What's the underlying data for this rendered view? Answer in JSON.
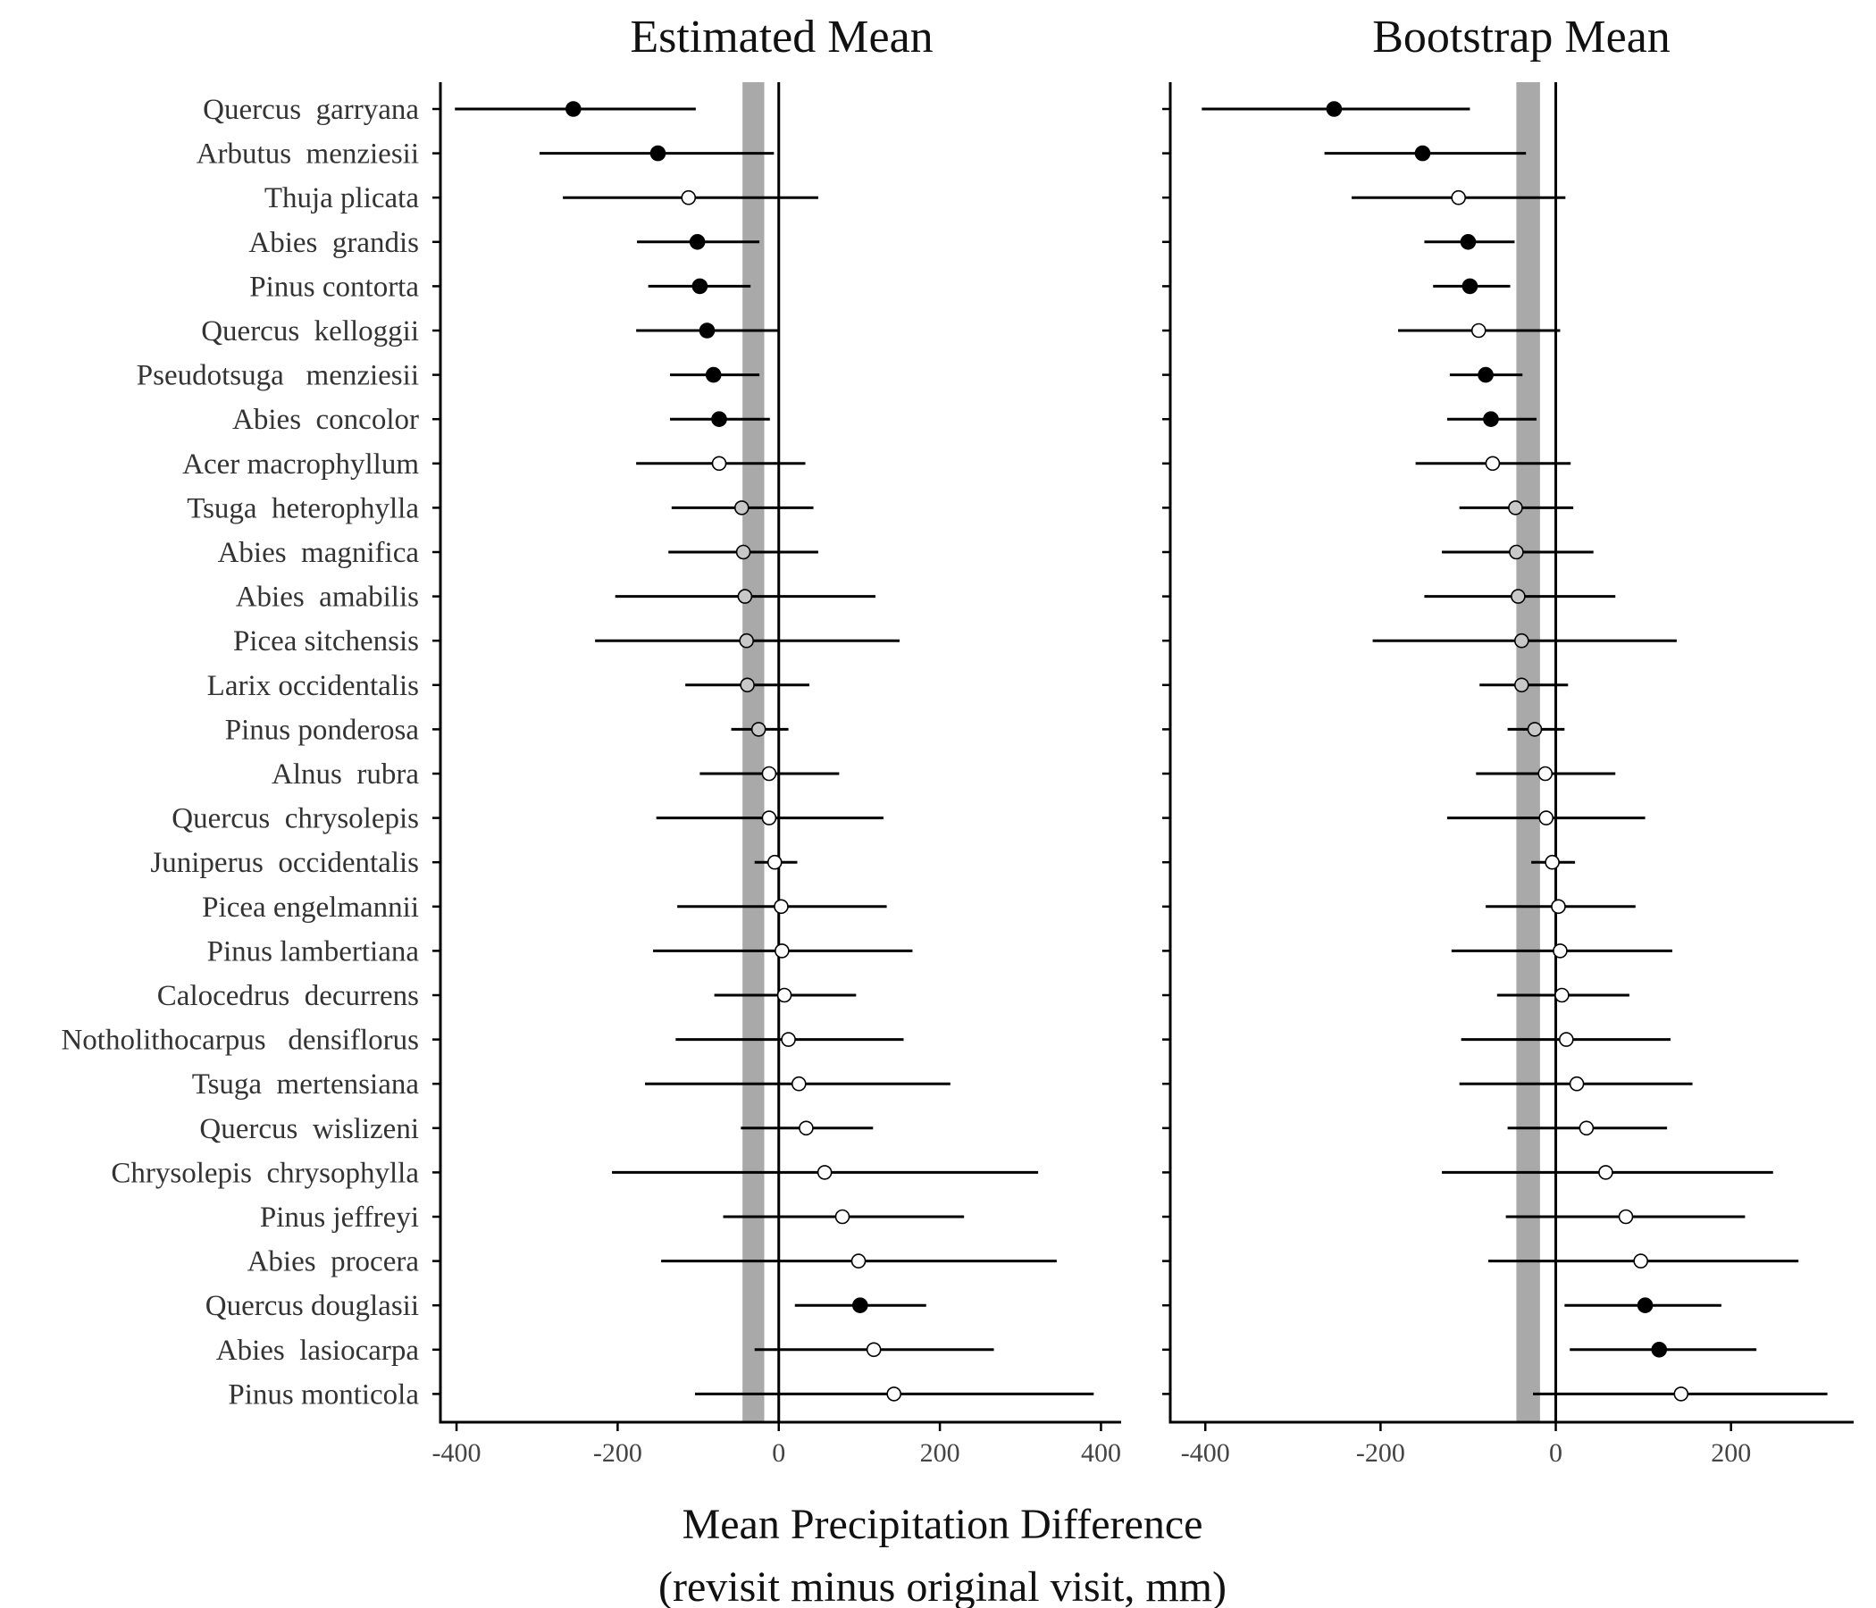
{
  "x_axis_title": [
    "Mean Precipitation Difference",
    "(revisit minus original visit, mm)"
  ],
  "colors": {
    "significant": "#000000",
    "zero_overlap": "#ffffff",
    "near_band": "#c8c8c8",
    "band": "#a9a9a9",
    "line": "#000000"
  },
  "chart_data": [
    {
      "type": "scatter",
      "title": "Estimated Mean",
      "xlabel": "Mean Precipitation Difference (revisit minus original visit, mm)",
      "ylabel": "",
      "xlim": [
        -420,
        425
      ],
      "xticks": [
        -400,
        -200,
        0,
        200,
        400
      ],
      "xtick_labels": [
        "-400",
        "-200",
        "0",
        "200",
        "400"
      ],
      "reference_line": 0,
      "band": [
        -45,
        -18
      ],
      "grid": false,
      "categories": [
        "Quercus  garryana",
        "Arbutus  menziesii",
        "Thuja plicata",
        "Abies  grandis",
        "Pinus contorta",
        "Quercus  kelloggii",
        "Pseudotsuga   menziesii",
        "Abies  concolor",
        "Acer macrophyllum",
        "Tsuga  heterophylla",
        "Abies  magnifica",
        "Abies  amabilis",
        "Picea sitchensis",
        "Larix occidentalis",
        "Pinus ponderosa",
        "Alnus  rubra",
        "Quercus  chrysolepis",
        "Juniperus  occidentalis",
        "Picea engelmannii",
        "Pinus lambertiana",
        "Calocedrus  decurrens",
        "Notholithocarpus   densiflorus",
        "Tsuga  mertensiana",
        "Quercus  wislizeni",
        "Chrysolepis  chrysophylla",
        "Pinus jeffreyi",
        "Abies  procera",
        "Quercus douglasii",
        "Abies  lasiocarpa",
        "Pinus monticola"
      ],
      "mean": [
        -255,
        -150,
        -112,
        -101,
        -98,
        -89,
        -81,
        -74,
        -74,
        -46,
        -44,
        -42,
        -40,
        -39,
        -25,
        -12,
        -12,
        -5,
        3,
        4,
        7,
        12,
        25,
        34,
        57,
        79,
        99,
        101,
        118,
        143
      ],
      "lower": [
        -402,
        -297,
        -268,
        -176,
        -162,
        -177,
        -135,
        -135,
        -177,
        -133,
        -137,
        -203,
        -228,
        -116,
        -59,
        -98,
        -152,
        -30,
        -126,
        -156,
        -80,
        -128,
        -166,
        -47,
        -207,
        -69,
        -146,
        20,
        -30,
        -104
      ],
      "upper": [
        -103,
        -6,
        49,
        -24,
        -35,
        0,
        -24,
        -11,
        33,
        43,
        49,
        120,
        150,
        38,
        12,
        75,
        130,
        23,
        134,
        166,
        96,
        155,
        213,
        117,
        322,
        230,
        345,
        183,
        267,
        391
      ],
      "fill": [
        "black",
        "black",
        "white",
        "black",
        "black",
        "black",
        "black",
        "black",
        "white",
        "grey",
        "grey",
        "grey",
        "grey",
        "grey",
        "grey",
        "white",
        "white",
        "white",
        "white",
        "white",
        "white",
        "white",
        "white",
        "white",
        "white",
        "white",
        "white",
        "black",
        "white",
        "white"
      ]
    },
    {
      "type": "scatter",
      "title": "Bootstrap Mean",
      "xlabel": "Mean Precipitation Difference (revisit minus original visit, mm)",
      "ylabel": "",
      "xlim": [
        -440,
        340
      ],
      "xticks": [
        -400,
        -200,
        0,
        200
      ],
      "xtick_labels": [
        "-400",
        "-200",
        "0",
        "200"
      ],
      "reference_line": 0,
      "band": [
        -45,
        -18
      ],
      "grid": false,
      "categories": [
        "Quercus  garryana",
        "Arbutus  menziesii",
        "Thuja plicata",
        "Abies  grandis",
        "Pinus contorta",
        "Quercus  kelloggii",
        "Pseudotsuga   menziesii",
        "Abies  concolor",
        "Acer macrophyllum",
        "Tsuga  heterophylla",
        "Abies  magnifica",
        "Abies  amabilis",
        "Picea sitchensis",
        "Larix occidentalis",
        "Pinus ponderosa",
        "Alnus  rubra",
        "Quercus  chrysolepis",
        "Juniperus  occidentalis",
        "Picea engelmannii",
        "Pinus lambertiana",
        "Calocedrus  decurrens",
        "Notholithocarpus   densiflorus",
        "Tsuga  mertensiana",
        "Quercus  wislizeni",
        "Chrysolepis  chrysophylla",
        "Pinus jeffreyi",
        "Abies  procera",
        "Quercus douglasii",
        "Abies  lasiocarpa",
        "Pinus monticola"
      ],
      "mean": [
        -253,
        -152,
        -111,
        -100,
        -98,
        -88,
        -80,
        -74,
        -72,
        -46,
        -45,
        -43,
        -39,
        -39,
        -24,
        -12,
        -11,
        -4,
        3,
        5,
        7,
        12,
        24,
        35,
        57,
        80,
        97,
        102,
        118,
        143
      ],
      "lower": [
        -404,
        -264,
        -233,
        -150,
        -140,
        -180,
        -121,
        -124,
        -160,
        -110,
        -130,
        -150,
        -209,
        -87,
        -55,
        -91,
        -124,
        -28,
        -80,
        -119,
        -67,
        -108,
        -110,
        -55,
        -130,
        -57,
        -77,
        10,
        16,
        -26
      ],
      "upper": [
        -98,
        -34,
        11,
        -47,
        -52,
        5,
        -38,
        -22,
        17,
        20,
        43,
        68,
        138,
        14,
        10,
        68,
        102,
        22,
        91,
        133,
        84,
        131,
        156,
        127,
        248,
        216,
        277,
        189,
        229,
        310
      ],
      "fill": [
        "black",
        "black",
        "white",
        "black",
        "black",
        "white",
        "black",
        "black",
        "white",
        "grey",
        "grey",
        "grey",
        "grey",
        "grey",
        "grey",
        "white",
        "white",
        "white",
        "white",
        "white",
        "white",
        "white",
        "white",
        "white",
        "white",
        "white",
        "white",
        "black",
        "black",
        "white"
      ]
    }
  ]
}
